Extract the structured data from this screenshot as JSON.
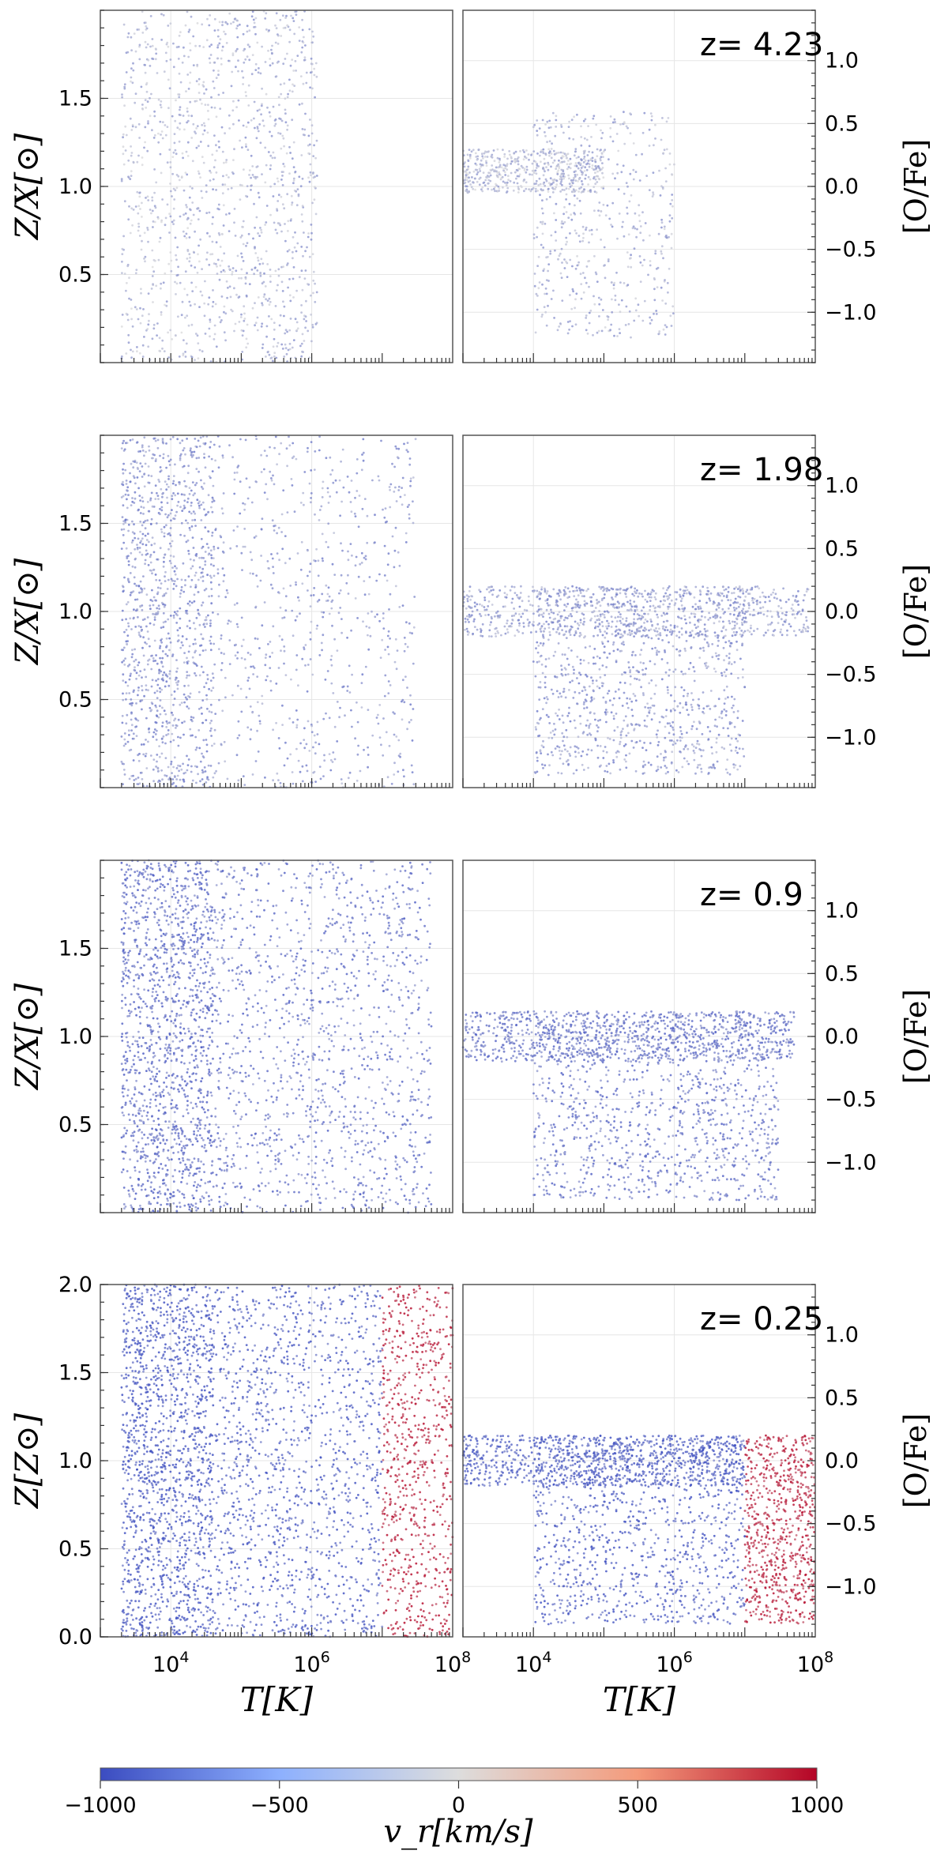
{
  "colors": {
    "vr_min": "#3b4cc0",
    "vr_mid": "#dddddd",
    "vr_max": "#b40426"
  },
  "colorbar": {
    "label": "v_r[km/s]",
    "ticks": [
      "−1000",
      "−500",
      "0",
      "500",
      "1000"
    ]
  },
  "chart_data": [
    {
      "type": "scatter",
      "panel": "left",
      "redshift_label": "z= 4.23",
      "ylabel": "Z/X[⊙]",
      "xscale": "log",
      "xlim": [
        1000,
        100000000
      ],
      "ylim": [
        0,
        2.0
      ],
      "yticks": [
        "0.5",
        "1.0",
        "1.5"
      ],
      "color_by": "v_r",
      "populations": [
        {
          "name": "",
          "x_range": [
            2000,
            30000
          ],
          "y_range": [
            0,
            2.0
          ],
          "v_r_mean": -250,
          "count": 520
        },
        {
          "name": "",
          "x_range": [
            30000,
            1200000
          ],
          "y_range": [
            0,
            2.0
          ],
          "v_r_mean": -300,
          "count": 760
        }
      ]
    },
    {
      "type": "scatter",
      "panel": "right",
      "redshift_label": "z= 4.23",
      "ylabel": "[O/Fe]",
      "xscale": "log",
      "xlim": [
        1000,
        100000000
      ],
      "ylim": [
        -1.4,
        1.4
      ],
      "yticks": [
        "1.0",
        "0.5",
        "0.0",
        "−0.5",
        "−1.0"
      ],
      "color_by": "v_r",
      "populations": [
        {
          "name": "",
          "x_range": [
            1000,
            100000
          ],
          "y_range": [
            -0.05,
            0.3
          ],
          "v_r_mean": -250,
          "count": 500
        },
        {
          "name": "",
          "x_range": [
            10000,
            1000000
          ],
          "y_range": [
            -1.2,
            0.6
          ],
          "v_r_mean": -300,
          "count": 500
        }
      ]
    },
    {
      "type": "scatter",
      "panel": "left",
      "redshift_label": "z= 1.98",
      "ylabel": "Z/X[⊙]",
      "xscale": "log",
      "xlim": [
        1000,
        100000000
      ],
      "ylim": [
        0,
        2.0
      ],
      "yticks": [
        "0.5",
        "1.0",
        "1.5"
      ],
      "color_by": "v_r",
      "populations": [
        {
          "name": "",
          "x_range": [
            2000,
            40000
          ],
          "y_range": [
            0,
            2.0
          ],
          "v_r_mean": -500,
          "count": 1100
        },
        {
          "name": "",
          "x_range": [
            40000,
            30000000
          ],
          "y_range": [
            0,
            2.0
          ],
          "v_r_mean": -450,
          "count": 700
        }
      ]
    },
    {
      "type": "scatter",
      "panel": "right",
      "redshift_label": "z= 1.98",
      "ylabel": "[O/Fe]",
      "xscale": "log",
      "xlim": [
        1000,
        100000000
      ],
      "ylim": [
        -1.4,
        1.4
      ],
      "yticks": [
        "1.0",
        "0.5",
        "0.0",
        "−0.5",
        "−1.0"
      ],
      "color_by": "v_r",
      "populations": [
        {
          "name": "",
          "x_range": [
            1000,
            80000000
          ],
          "y_range": [
            -0.2,
            0.2
          ],
          "v_r_mean": -400,
          "count": 800
        },
        {
          "name": "",
          "x_range": [
            10000,
            10000000
          ],
          "y_range": [
            -1.3,
            0.2
          ],
          "v_r_mean": -450,
          "count": 1000
        }
      ]
    },
    {
      "type": "scatter",
      "panel": "left",
      "redshift_label": "z= 0.9",
      "ylabel": "Z/X[⊙]",
      "xscale": "log",
      "xlim": [
        1000,
        100000000
      ],
      "ylim": [
        0,
        2.0
      ],
      "yticks": [
        "0.5",
        "1.0",
        "1.5"
      ],
      "color_by": "v_r",
      "populations": [
        {
          "name": "",
          "x_range": [
            2000,
            40000
          ],
          "y_range": [
            0,
            2.0
          ],
          "v_r_mean": -700,
          "count": 1400
        },
        {
          "name": "",
          "x_range": [
            40000,
            50000000
          ],
          "y_range": [
            0,
            2.0
          ],
          "v_r_mean": -650,
          "count": 1300
        }
      ]
    },
    {
      "type": "scatter",
      "panel": "right",
      "redshift_label": "z= 0.9",
      "ylabel": "[O/Fe]",
      "xscale": "log",
      "xlim": [
        1000,
        100000000
      ],
      "ylim": [
        -1.4,
        1.4
      ],
      "yticks": [
        "1.0",
        "0.5",
        "0.0",
        "−0.5",
        "−1.0"
      ],
      "color_by": "v_r",
      "populations": [
        {
          "name": "",
          "x_range": [
            1000,
            50000000
          ],
          "y_range": [
            -0.2,
            0.2
          ],
          "v_r_mean": -650,
          "count": 900
        },
        {
          "name": "",
          "x_range": [
            10000,
            30000000
          ],
          "y_range": [
            -1.3,
            0.2
          ],
          "v_r_mean": -650,
          "count": 1100
        }
      ]
    },
    {
      "type": "scatter",
      "panel": "left",
      "redshift_label": "z= 0.25",
      "ylabel": "Z[Z⊙]",
      "xlabel": "T[K]",
      "xscale": "log",
      "xlim": [
        1000,
        100000000
      ],
      "ylim": [
        0,
        2.0
      ],
      "yticks": [
        "0.0",
        "0.5",
        "1.0",
        "1.5",
        "2.0"
      ],
      "xticks": [
        "10^4",
        "10^6",
        "10^8"
      ],
      "color_by": "v_r",
      "populations": [
        {
          "name": "",
          "x_range": [
            2000,
            40000
          ],
          "y_range": [
            0,
            2.0
          ],
          "v_r_mean": -850,
          "count": 1500
        },
        {
          "name": "",
          "x_range": [
            40000,
            10000000
          ],
          "y_range": [
            0,
            2.0
          ],
          "v_r_mean": -800,
          "count": 1300
        },
        {
          "name": "",
          "x_range": [
            10000000,
            100000000
          ],
          "y_range": [
            0,
            2.0
          ],
          "v_r_mean": 800,
          "count": 700
        }
      ]
    },
    {
      "type": "scatter",
      "panel": "right",
      "redshift_label": "z= 0.25",
      "ylabel": "[O/Fe]",
      "xlabel": "T[K]",
      "xscale": "log",
      "xlim": [
        1000,
        100000000
      ],
      "ylim": [
        -1.4,
        1.4
      ],
      "yticks": [
        "1.0",
        "0.5",
        "0.0",
        "−0.5",
        "−1.0"
      ],
      "xticks": [
        "10^4",
        "10^6",
        "10^8"
      ],
      "color_by": "v_r",
      "populations": [
        {
          "name": "",
          "x_range": [
            1000,
            10000000
          ],
          "y_range": [
            -0.2,
            0.2
          ],
          "v_r_mean": -800,
          "count": 900
        },
        {
          "name": "",
          "x_range": [
            10000,
            10000000
          ],
          "y_range": [
            -1.3,
            0.2
          ],
          "v_r_mean": -800,
          "count": 1000
        },
        {
          "name": "",
          "x_range": [
            10000000,
            100000000
          ],
          "y_range": [
            -1.3,
            0.2
          ],
          "v_r_mean": 800,
          "count": 700
        }
      ]
    }
  ]
}
